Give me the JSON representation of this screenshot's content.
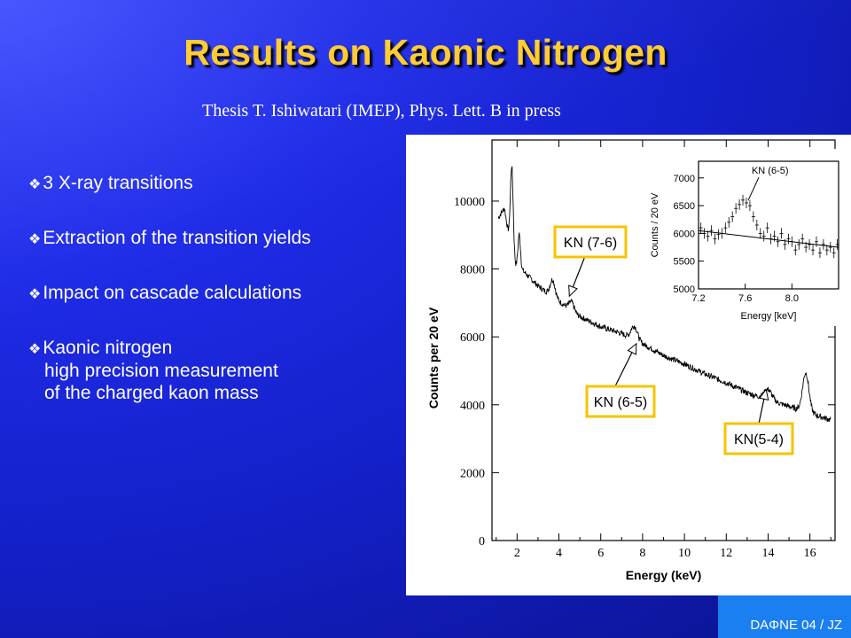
{
  "slide": {
    "title": "Results on Kaonic Nitrogen",
    "subtitle": "Thesis T. Ishiwatari (IMEP), Phys. Lett. B in press",
    "bullet_glyph": "❖",
    "bullets": [
      {
        "line1": "3 X-ray transitions",
        "line2": "",
        "line3": ""
      },
      {
        "line1": "Extraction of the transition yields",
        "line2": "",
        "line3": ""
      },
      {
        "line1": "Impact on cascade calculations",
        "line2": "",
        "line3": ""
      },
      {
        "line1": "Kaonic nitrogen",
        "line2": "high precision measurement",
        "line3": "of  the charged kaon mass"
      }
    ],
    "footer": "DAΦNE 04 / JZ"
  },
  "chart_data": [
    {
      "type": "line",
      "xlabel": "Energy (keV)",
      "ylabel": "Counts per 20 eV",
      "xlim": [
        0.8,
        17.2
      ],
      "ylim": [
        0,
        11800
      ],
      "xticks": [
        2,
        4,
        6,
        8,
        10,
        12,
        14,
        16
      ],
      "yticks": [
        0,
        2000,
        4000,
        6000,
        8000,
        10000
      ],
      "baseline": [
        [
          1.1,
          9500
        ],
        [
          1.4,
          9800
        ],
        [
          1.8,
          8100
        ],
        [
          2.2,
          8000
        ],
        [
          3,
          7500
        ],
        [
          4,
          7050
        ],
        [
          5,
          6600
        ],
        [
          6,
          6300
        ],
        [
          7,
          6100
        ],
        [
          8,
          5800
        ],
        [
          9,
          5450
        ],
        [
          10,
          5200
        ],
        [
          11,
          4900
        ],
        [
          12,
          4650
        ],
        [
          13,
          4350
        ],
        [
          14,
          4150
        ],
        [
          15,
          3950
        ],
        [
          16,
          3750
        ],
        [
          17,
          3550
        ]
      ],
      "peaks": [
        {
          "x": 1.75,
          "height": 2700,
          "width": 0.07
        },
        {
          "x": 2.1,
          "height": 1000,
          "width": 0.06
        },
        {
          "x": 3.7,
          "height": 500,
          "width": 0.12
        },
        {
          "x": 4.6,
          "height": 250,
          "width": 0.12
        },
        {
          "x": 7.6,
          "height": 400,
          "width": 0.15
        },
        {
          "x": 14.0,
          "height": 300,
          "width": 0.18
        },
        {
          "x": 15.8,
          "height": 1150,
          "width": 0.15
        }
      ],
      "annotations": [
        {
          "text": "KN (7-6)",
          "x": 4.5,
          "y": 7200
        },
        {
          "text": "KN (6-5)",
          "x": 7.7,
          "y": 5800
        },
        {
          "text": "KN(5-4)",
          "x": 13.9,
          "y": 4450
        }
      ]
    },
    {
      "type": "scatter",
      "xlabel": "Energy [keV]",
      "ylabel": "Counts / 20 eV",
      "xlim": [
        7.2,
        8.4
      ],
      "ylim": [
        5000,
        7300
      ],
      "xticks": [
        7.2,
        7.6,
        8.0
      ],
      "yticks": [
        5000,
        5500,
        6000,
        6500,
        7000
      ],
      "fit_line": [
        [
          7.2,
          6050
        ],
        [
          8.4,
          5750
        ]
      ],
      "annotation": {
        "text": "KN (6-5)",
        "x": 7.61,
        "y": 6530
      },
      "points": [
        [
          7.22,
          6100
        ],
        [
          7.25,
          6000
        ],
        [
          7.28,
          5950
        ],
        [
          7.31,
          6050
        ],
        [
          7.34,
          5900
        ],
        [
          7.37,
          5980
        ],
        [
          7.4,
          6000
        ],
        [
          7.43,
          6100
        ],
        [
          7.46,
          6200
        ],
        [
          7.49,
          6300
        ],
        [
          7.52,
          6450
        ],
        [
          7.55,
          6520
        ],
        [
          7.58,
          6600
        ],
        [
          7.61,
          6550
        ],
        [
          7.64,
          6500
        ],
        [
          7.67,
          6300
        ],
        [
          7.7,
          6150
        ],
        [
          7.73,
          6000
        ],
        [
          7.76,
          5950
        ],
        [
          7.79,
          6100
        ],
        [
          7.82,
          5900
        ],
        [
          7.85,
          5950
        ],
        [
          7.88,
          5850
        ],
        [
          7.91,
          6000
        ],
        [
          7.94,
          5800
        ],
        [
          7.97,
          5900
        ],
        [
          8.0,
          5850
        ],
        [
          8.03,
          5700
        ],
        [
          8.06,
          5800
        ],
        [
          8.09,
          5900
        ],
        [
          8.12,
          5750
        ],
        [
          8.15,
          5800
        ],
        [
          8.18,
          5700
        ],
        [
          8.21,
          5850
        ],
        [
          8.24,
          5650
        ],
        [
          8.27,
          5800
        ],
        [
          8.3,
          5700
        ],
        [
          8.33,
          5750
        ],
        [
          8.36,
          5650
        ],
        [
          8.39,
          5800
        ]
      ]
    }
  ]
}
